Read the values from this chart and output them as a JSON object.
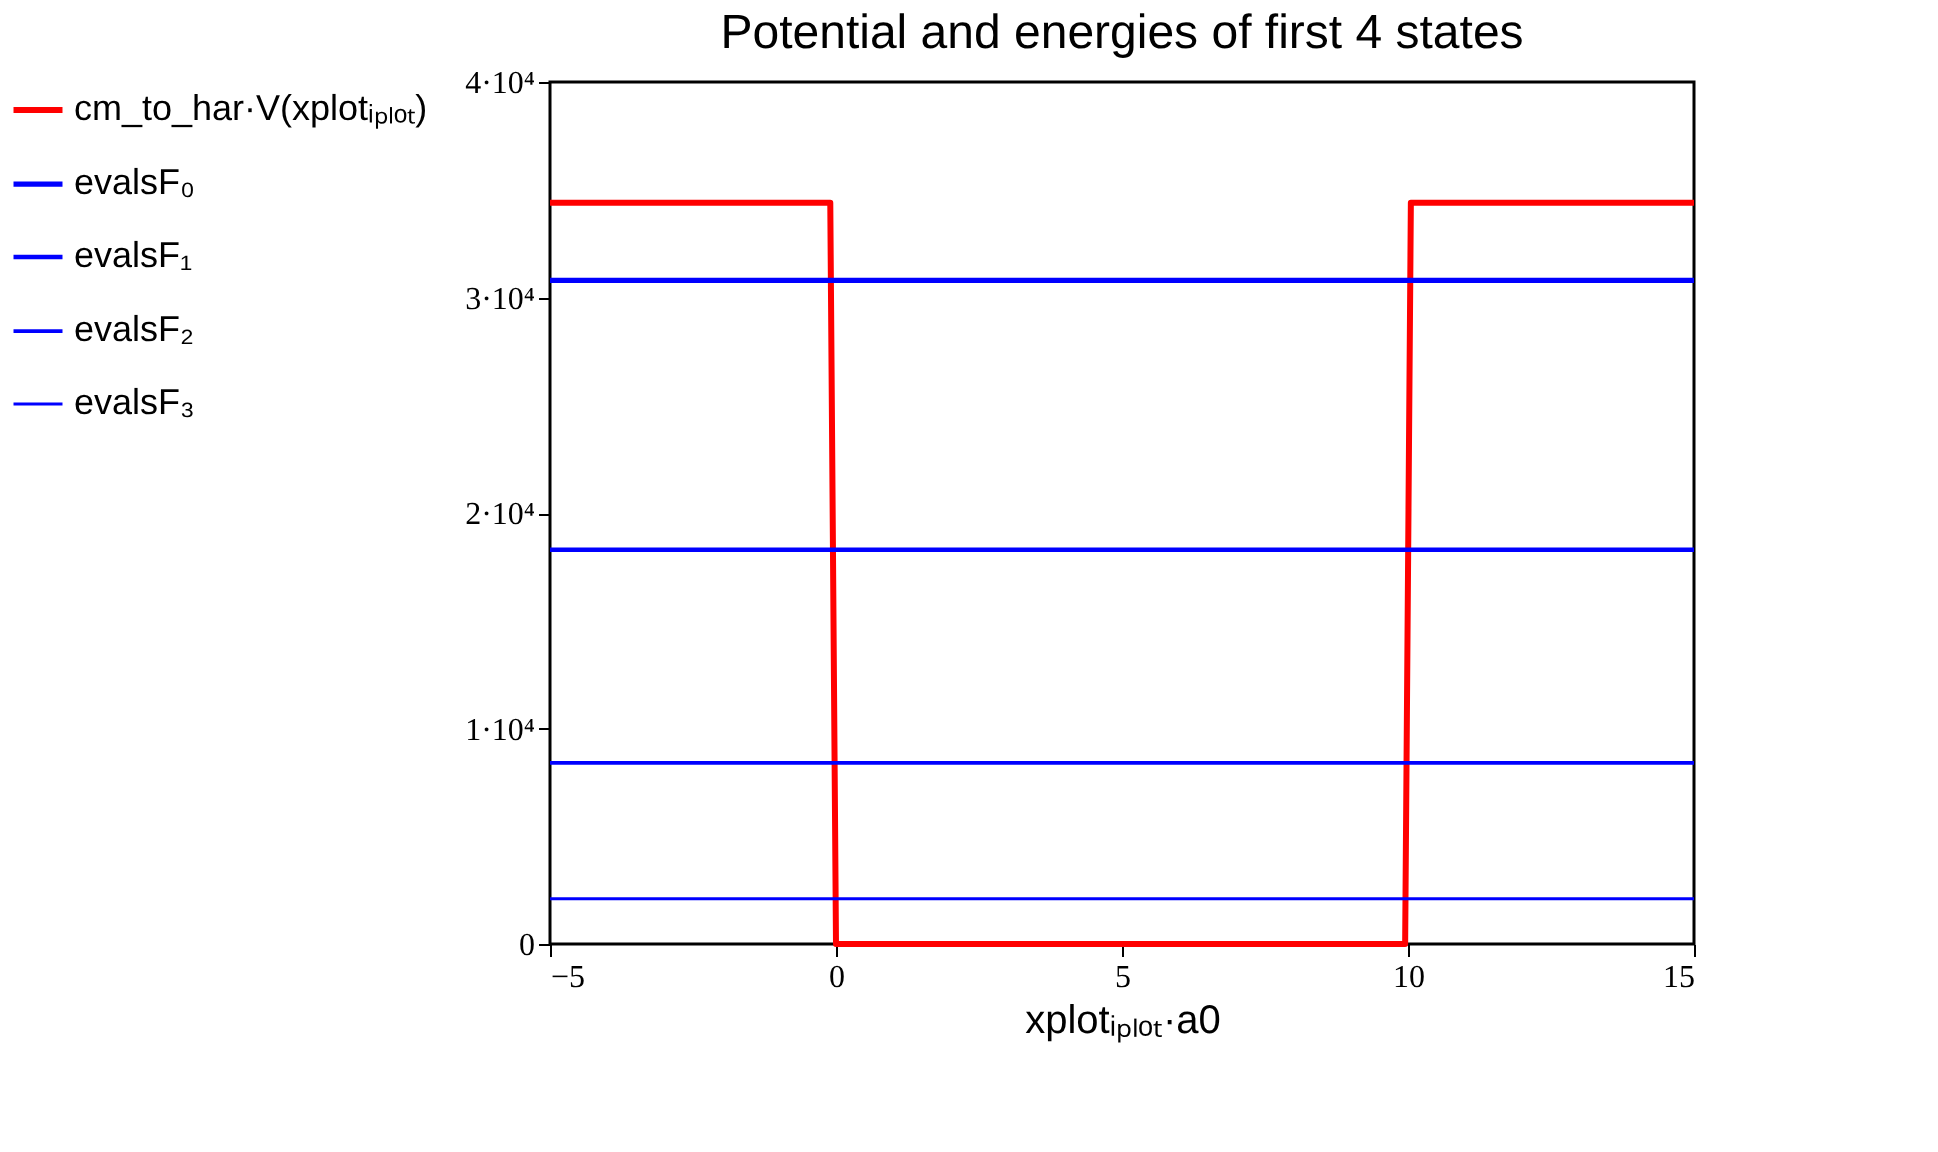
{
  "chart_data": {
    "type": "line",
    "title": "Potential and energies of first 4 states",
    "xlabel": "xplotᵢₚₗₒₜ·a0",
    "xlim": [
      -5,
      15
    ],
    "xticks": [
      {
        "value": -5,
        "label": "−5"
      },
      0,
      5,
      10,
      15
    ],
    "ylim": [
      0,
      40000
    ],
    "yticks": [
      0,
      {
        "value": 10000,
        "label": "1·10⁴"
      },
      {
        "value": 20000,
        "label": "2·10⁴"
      },
      {
        "value": 30000,
        "label": "3·10⁴"
      },
      {
        "value": 40000,
        "label": "4·10⁴"
      }
    ],
    "grid": false,
    "legend": "left",
    "line_style": "solid",
    "marker": "none",
    "series": [
      {
        "name": "cm_to_har·V(xplotᵢₚₗₒₜ)",
        "color": "#ff0000",
        "x": [
          -5,
          -0.1,
          0,
          9.95,
          10.05,
          15
        ],
        "values": [
          34400,
          34400,
          0,
          0,
          34400,
          34400
        ]
      },
      {
        "name": "evalsF₀",
        "color": "#0000ff",
        "x": [
          -5,
          15
        ],
        "values": [
          30800,
          30800
        ]
      },
      {
        "name": "evalsF₁",
        "color": "#0000ff",
        "x": [
          -5,
          15
        ],
        "values": [
          18300,
          18300
        ]
      },
      {
        "name": "evalsF₂",
        "color": "#0000ff",
        "x": [
          -5,
          15
        ],
        "values": [
          8400,
          8400
        ]
      },
      {
        "name": "evalsF₃",
        "color": "#0000ff",
        "x": [
          -5,
          15
        ],
        "values": [
          2100,
          2100
        ]
      }
    ]
  }
}
